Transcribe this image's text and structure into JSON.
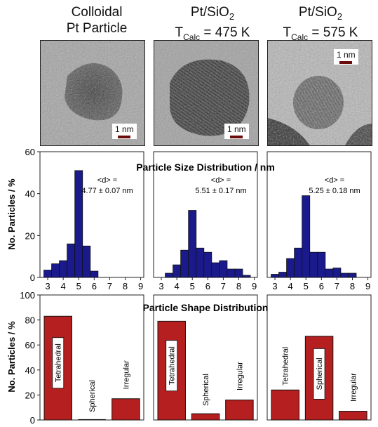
{
  "columns": [
    {
      "title_line1": "Colloidal",
      "title_line2": "Pt Particle",
      "title_sub": "",
      "title_line2_rest": "",
      "scale_label": "1 nm"
    },
    {
      "title_line1": "Pt/SiO",
      "title_line1_sub": "2",
      "title_line2": "T",
      "title_sub": "Calc",
      "title_line2_rest": " = 475 K",
      "scale_label": "1 nm"
    },
    {
      "title_line1": "Pt/SiO",
      "title_line1_sub": "2",
      "title_line2": "T",
      "title_sub": "Calc",
      "title_line2_rest": " = 575 K",
      "scale_label": "1 nm"
    }
  ],
  "colors": {
    "size_bar": "#1a1a8c",
    "shape_bar": "#b51f1f",
    "tem_gray": "#9a9a9a"
  },
  "chart_data": [
    {
      "type": "bar",
      "title": "Particle Size Distribution / nm",
      "ylabel": "No. Particles / %",
      "xlim": [
        2.5,
        9.2
      ],
      "ylim": [
        0,
        60
      ],
      "yticks": [
        0,
        20,
        40,
        60
      ],
      "xticks": [
        3,
        4,
        5,
        6,
        7,
        8,
        9
      ],
      "panels": [
        {
          "annotation_line1": "<d> =",
          "annotation_line2": "4.77 ± 0.07 nm",
          "bins": [
            3.0,
            3.5,
            4.0,
            4.5,
            5.0,
            5.5,
            6.0,
            6.5,
            7.0,
            7.5,
            8.0,
            8.5
          ],
          "values": [
            3.5,
            6.5,
            8,
            16,
            51,
            15,
            3,
            0,
            0,
            0,
            0,
            0
          ]
        },
        {
          "annotation_line1": "<d> =",
          "annotation_line2": "5.51 ± 0.17 nm",
          "bins": [
            3.0,
            3.5,
            4.0,
            4.5,
            5.0,
            5.5,
            6.0,
            6.5,
            7.0,
            7.5,
            8.0,
            8.5
          ],
          "values": [
            0,
            2,
            6,
            13,
            32,
            14,
            12,
            7,
            8,
            4,
            4,
            1
          ]
        },
        {
          "annotation_line1": "<d> =",
          "annotation_line2": "5.25 ± 0.18 nm",
          "bins": [
            3.0,
            3.5,
            4.0,
            4.5,
            5.0,
            5.5,
            6.0,
            6.5,
            7.0,
            7.5,
            8.0,
            8.5
          ],
          "values": [
            1.5,
            2.5,
            9,
            14,
            39,
            12,
            12,
            4,
            4.5,
            2,
            2,
            0
          ]
        }
      ]
    },
    {
      "type": "bar",
      "title": "Particle Shape Distribution",
      "ylabel": "No. Particles / %",
      "ylim": [
        0,
        100
      ],
      "yticks": [
        0,
        20,
        40,
        60,
        80,
        100
      ],
      "categories": [
        "Tetrahedral",
        "Spherical",
        "Irregular"
      ],
      "panels": [
        {
          "values": [
            83,
            0,
            17
          ],
          "boxed": [
            true,
            false,
            false
          ]
        },
        {
          "values": [
            79,
            5,
            16
          ],
          "boxed": [
            true,
            false,
            false
          ]
        },
        {
          "values": [
            24,
            67,
            7
          ],
          "boxed": [
            false,
            true,
            false
          ]
        }
      ]
    }
  ]
}
